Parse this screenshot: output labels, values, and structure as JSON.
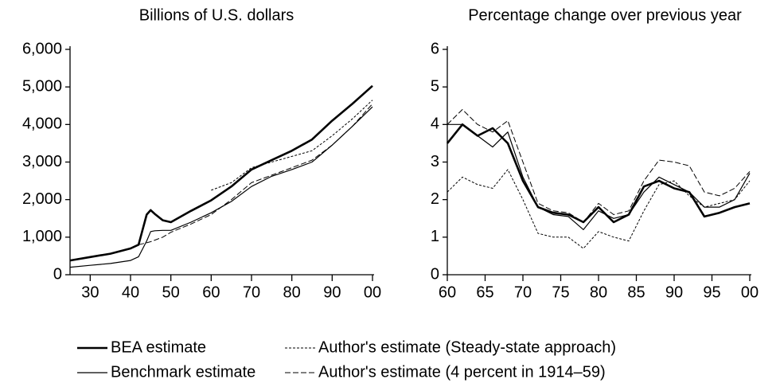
{
  "chart_data": [
    {
      "type": "line",
      "title": "Billions of U.S. dollars",
      "x": [
        1925,
        1930,
        1935,
        1940,
        1942,
        1944,
        1945,
        1946,
        1948,
        1950,
        1955,
        1960,
        1965,
        1970,
        1975,
        1980,
        1985,
        1990,
        1995,
        2000
      ],
      "series": [
        {
          "name": "BEA estimate",
          "color": "#000000",
          "values": [
            380,
            470,
            560,
            700,
            800,
            1600,
            1720,
            1620,
            1450,
            1400,
            1700,
            1980,
            2350,
            2800,
            3050,
            3300,
            3600,
            4100,
            4550,
            5030
          ]
        },
        {
          "name": "Benchmark estimate",
          "color": "#000000",
          "values": [
            200,
            250,
            300,
            380,
            480,
            900,
            1150,
            1170,
            1180,
            1180,
            1400,
            1650,
            1950,
            2350,
            2620,
            2800,
            3000,
            3450,
            3950,
            4470
          ]
        },
        {
          "name": "Author's estimate (Steady-state approach)",
          "color": "#000000",
          "values": [
            null,
            null,
            null,
            null,
            null,
            null,
            null,
            null,
            null,
            null,
            null,
            2250,
            2450,
            2850,
            3000,
            3150,
            3300,
            3700,
            4150,
            4650
          ]
        },
        {
          "name": "Author's estimate (4 percent in 1914–59)",
          "color": "#000000",
          "values": [
            null,
            null,
            null,
            null,
            800,
            850,
            880,
            920,
            1000,
            1130,
            1350,
            1600,
            2000,
            2450,
            2650,
            2850,
            3050,
            3450,
            3950,
            4550
          ]
        }
      ],
      "xlim": [
        1925,
        2000
      ],
      "xticks": [
        {
          "value": 1930,
          "label": "30"
        },
        {
          "value": 1940,
          "label": "40"
        },
        {
          "value": 1950,
          "label": "50"
        },
        {
          "value": 1960,
          "label": "60"
        },
        {
          "value": 1970,
          "label": "70"
        },
        {
          "value": 1980,
          "label": "80"
        },
        {
          "value": 1990,
          "label": "90"
        },
        {
          "value": 2000,
          "label": "00"
        }
      ],
      "ylim": [
        0,
        6000
      ],
      "yticks": [
        0,
        {
          "value": 1000,
          "label": "1,000"
        },
        {
          "value": 2000,
          "label": "2,000"
        },
        {
          "value": 3000,
          "label": "3,000"
        },
        {
          "value": 4000,
          "label": "4,000"
        },
        {
          "value": 5000,
          "label": "5,000"
        },
        {
          "value": 6000,
          "label": "6,000"
        }
      ]
    },
    {
      "type": "line",
      "title": "Percentage change over previous year",
      "x": [
        1960,
        1962,
        1964,
        1966,
        1968,
        1970,
        1972,
        1974,
        1976,
        1978,
        1980,
        1982,
        1984,
        1986,
        1988,
        1990,
        1992,
        1994,
        1996,
        1998,
        2000
      ],
      "series": [
        {
          "name": "BEA estimate",
          "color": "#000000",
          "values": [
            3.5,
            4.0,
            3.7,
            3.9,
            3.5,
            2.5,
            1.8,
            1.65,
            1.6,
            1.4,
            1.8,
            1.4,
            1.6,
            2.35,
            2.5,
            2.3,
            2.2,
            1.55,
            1.65,
            1.8,
            1.9
          ]
        },
        {
          "name": "Benchmark estimate",
          "color": "#000000",
          "values": [
            4.0,
            4.0,
            3.7,
            3.4,
            3.8,
            2.6,
            1.8,
            1.6,
            1.55,
            1.2,
            1.7,
            1.5,
            1.6,
            2.2,
            2.6,
            2.4,
            2.2,
            1.8,
            1.8,
            2.0,
            2.7
          ]
        },
        {
          "name": "Author's estimate (Steady-state approach)",
          "color": "#000000",
          "values": [
            2.2,
            2.6,
            2.4,
            2.3,
            2.8,
            2.0,
            1.1,
            1.0,
            1.0,
            0.7,
            1.15,
            1.0,
            0.9,
            1.7,
            2.4,
            2.5,
            2.1,
            1.8,
            1.9,
            2.0,
            2.5
          ]
        },
        {
          "name": "Author's estimate (4 percent in 1914–59)",
          "color": "#000000",
          "values": [
            4.0,
            4.4,
            4.0,
            3.8,
            4.1,
            3.0,
            1.9,
            1.7,
            1.65,
            1.4,
            1.9,
            1.6,
            1.7,
            2.5,
            3.05,
            3.0,
            2.9,
            2.2,
            2.1,
            2.3,
            2.75
          ]
        }
      ],
      "xlim": [
        1960,
        2000
      ],
      "xticks": [
        {
          "value": 1960,
          "label": "60"
        },
        {
          "value": 1965,
          "label": "65"
        },
        {
          "value": 1970,
          "label": "70"
        },
        {
          "value": 1975,
          "label": "75"
        },
        {
          "value": 1980,
          "label": "80"
        },
        {
          "value": 1985,
          "label": "85"
        },
        {
          "value": 1990,
          "label": "90"
        },
        {
          "value": 1995,
          "label": "95"
        },
        {
          "value": 2000,
          "label": "00"
        }
      ],
      "ylim": [
        0,
        6
      ],
      "yticks": [
        0,
        1,
        2,
        3,
        4,
        5,
        6
      ]
    }
  ]
}
